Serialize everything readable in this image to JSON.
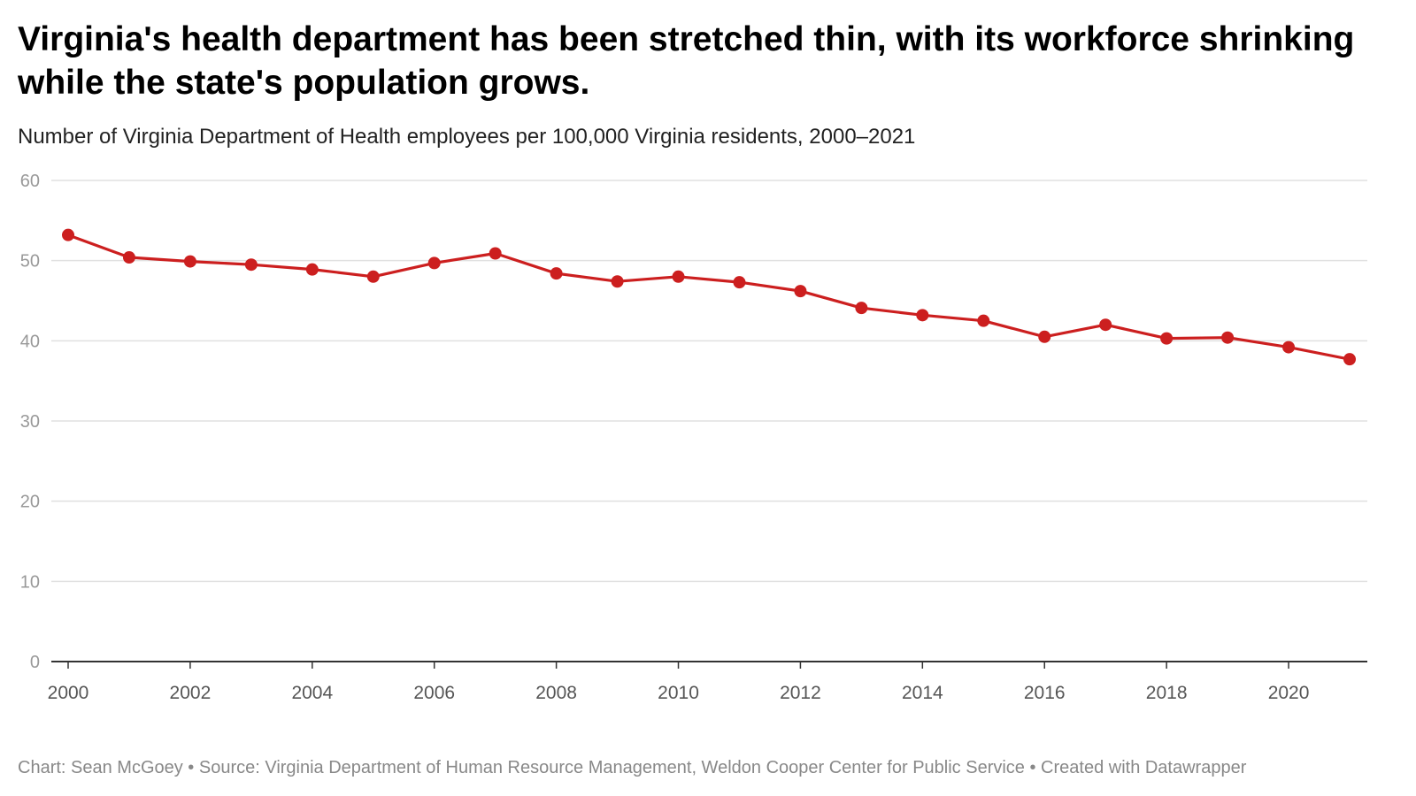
{
  "header": {
    "title": "Virginia's health department has been stretched thin, with its workforce shrinking while the state's population grows.",
    "subtitle": "Number of Virginia Department of Health employees per 100,000 Virginia residents, 2000–2021"
  },
  "footer": {
    "credit": "Chart: Sean McGoey • Source: Virginia Department of Human Resource Management, Weldon Cooper Center for Public Service • Created with Datawrapper"
  },
  "colors": {
    "line": "#cc1f1f",
    "grid": "#e0e0e0",
    "axis": "#333333",
    "ytick": "#999999",
    "xtick": "#555555"
  },
  "chart_data": {
    "type": "line",
    "title": "Virginia's health department has been stretched thin, with its workforce shrinking while the state's population grows.",
    "subtitle": "Number of Virginia Department of Health employees per 100,000 Virginia residents, 2000–2021",
    "xlabel": "",
    "ylabel": "",
    "xlim": [
      2000,
      2021
    ],
    "ylim": [
      0,
      60
    ],
    "grid": true,
    "legend": "none",
    "yticks": [
      0,
      10,
      20,
      30,
      40,
      50,
      60
    ],
    "xticks": [
      2000,
      2002,
      2004,
      2006,
      2008,
      2010,
      2012,
      2014,
      2016,
      2018,
      2020
    ],
    "x": [
      2000,
      2001,
      2002,
      2003,
      2004,
      2005,
      2006,
      2007,
      2008,
      2009,
      2010,
      2011,
      2012,
      2013,
      2014,
      2015,
      2016,
      2017,
      2018,
      2019,
      2020,
      2021
    ],
    "series": [
      {
        "values": [
          53.2,
          50.4,
          49.9,
          49.5,
          48.9,
          48.0,
          49.7,
          50.9,
          48.4,
          47.4,
          48.0,
          47.3,
          46.2,
          44.1,
          43.2,
          42.5,
          40.5,
          42.0,
          40.3,
          40.4,
          39.2,
          37.7
        ]
      }
    ]
  }
}
